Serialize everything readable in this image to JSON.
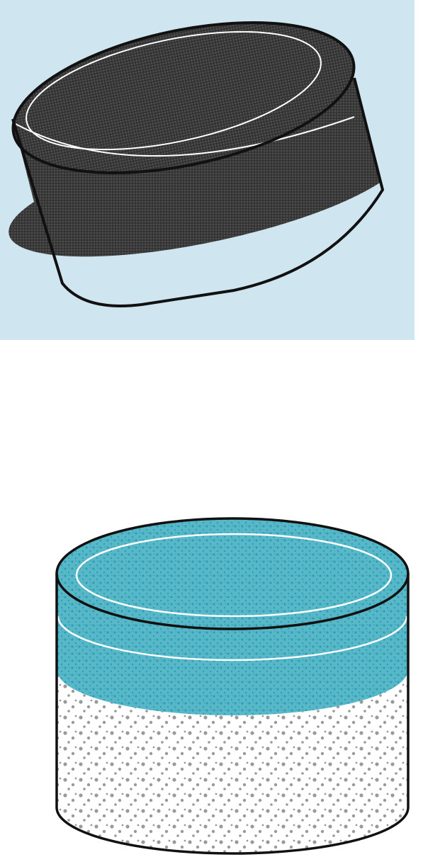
{
  "figures": [
    {
      "id": "tilted-cylinder-scan",
      "style": "monochrome halftone scan",
      "colors": {
        "background": "#cfe6f0",
        "top_layer": "#2f2f2f",
        "lower_layer": "#cfe6f0",
        "outline": "#111111",
        "inner_ring": "#ffffff"
      }
    },
    {
      "id": "upright-cylinder-color",
      "style": "color stippled illustration",
      "colors": {
        "background": "#ffffff",
        "top_layer": "#59b8c8",
        "top_speckle": "#2a9fb6",
        "lower_layer": "#ffffff",
        "lower_speckle": "#9a9a9a",
        "outline": "#111111",
        "inner_ring": "#ffffff"
      }
    }
  ]
}
